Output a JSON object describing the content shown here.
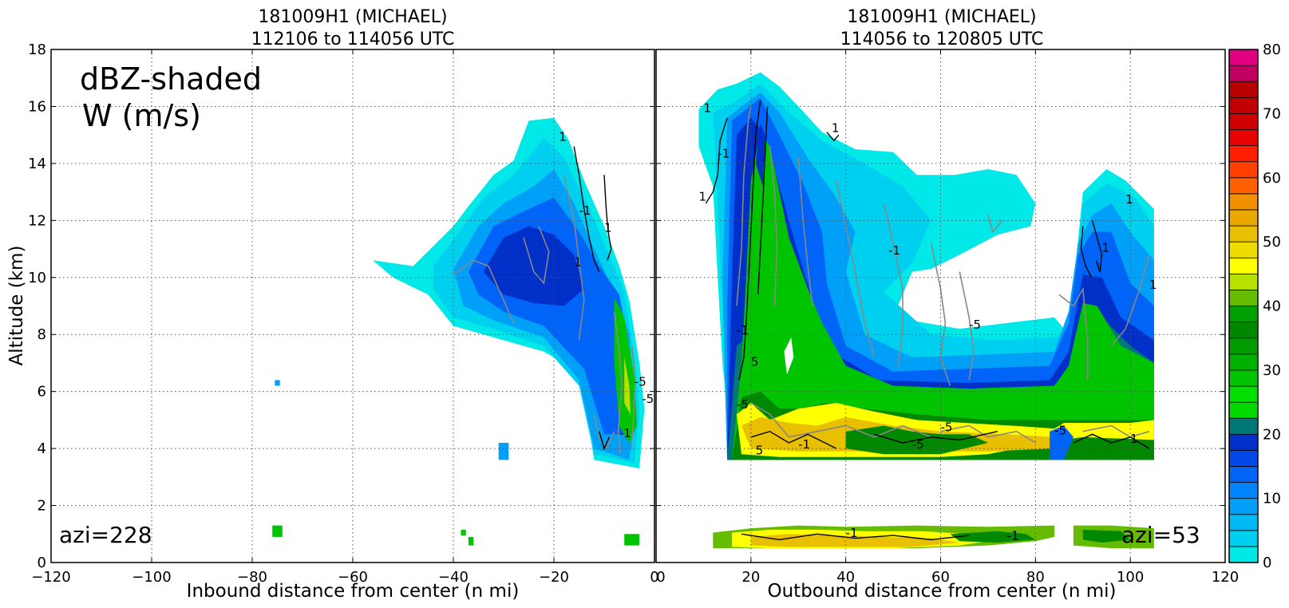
{
  "chart_data": [
    {
      "type": "heatmap",
      "title_line1": "181009H1 (MICHAEL)",
      "title_line2": "112106 to 114056 UTC",
      "xlabel": "Inbound distance from center (n mi)",
      "ylabel": "Altitude (km)",
      "xlim": [
        -120,
        0
      ],
      "ylim": [
        0,
        18
      ],
      "xticks": [
        "−120",
        "−100",
        "−80",
        "−60",
        "−40",
        "−20",
        "0"
      ],
      "xtick_values": [
        -120,
        -100,
        -80,
        -60,
        -40,
        -20,
        0
      ],
      "yticks": [
        "0",
        "2",
        "4",
        "6",
        "8",
        "10",
        "12",
        "14",
        "16",
        "18"
      ],
      "ytick_values": [
        0,
        2,
        4,
        6,
        8,
        10,
        12,
        14,
        16,
        18
      ],
      "grid": true,
      "annotation_line1": "dBZ-shaded",
      "annotation_line2": "W (m/s)",
      "azimuth_label": "azi=228",
      "contour_labels": [
        "1",
        "-1",
        "-5",
        "5"
      ]
    },
    {
      "type": "heatmap",
      "title_line1": "181009H1 (MICHAEL)",
      "title_line2": "114056 to 120805 UTC",
      "xlabel": "Outbound distance from center (n mi)",
      "xlim": [
        0,
        120
      ],
      "ylim": [
        0,
        18
      ],
      "xticks": [
        "0",
        "20",
        "40",
        "60",
        "80",
        "100",
        "120"
      ],
      "xtick_values": [
        0,
        20,
        40,
        60,
        80,
        100,
        120
      ],
      "grid": true,
      "azimuth_label": "azi=53",
      "contour_labels": [
        "1",
        "-1",
        "-5",
        "5"
      ]
    }
  ],
  "colorbar": {
    "ticks": [
      "0",
      "10",
      "20",
      "30",
      "40",
      "50",
      "60",
      "70",
      "80"
    ],
    "tick_values": [
      0,
      10,
      20,
      30,
      40,
      50,
      60,
      70,
      80
    ],
    "range": [
      0,
      80
    ],
    "step": 2.5,
    "colors": [
      "#00e8e8",
      "#00d0f0",
      "#00b8f4",
      "#00a0f8",
      "#0084fc",
      "#0064f8",
      "#0048e8",
      "#0030c8",
      "#007878",
      "#00d800",
      "#00e000",
      "#00c400",
      "#00b000",
      "#009c00",
      "#008800",
      "#00a000",
      "#66bb00",
      "#b8e000",
      "#ffff00",
      "#eedd00",
      "#e8c000",
      "#e8a800",
      "#f09000",
      "#ff6000",
      "#ff4000",
      "#ff2000",
      "#e80000",
      "#d00000",
      "#c00000",
      "#b80000",
      "#c00060",
      "#e00080",
      "#ff00cc",
      "#dd33dd",
      "#aa44cc",
      "#7744aa",
      "#442255",
      "#000000"
    ]
  }
}
